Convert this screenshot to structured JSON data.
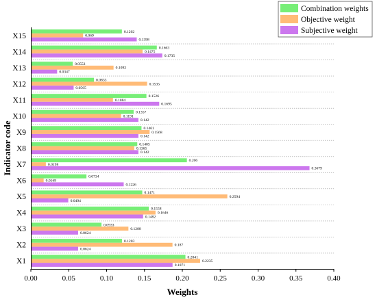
{
  "chart_data": {
    "type": "bar",
    "orientation": "horizontal",
    "categories": [
      "X1",
      "X2",
      "X3",
      "X4",
      "X5",
      "X6",
      "X7",
      "X8",
      "X9",
      "X10",
      "X11",
      "X12",
      "X13",
      "X14",
      "X15"
    ],
    "series": [
      {
        "name": "Combination weights",
        "color": "#77ee77",
        "values": [
          0.2041,
          0.1203,
          0.0933,
          0.1558,
          0.1471,
          0.0734,
          0.206,
          0.1405,
          0.1461,
          0.1357,
          0.1526,
          0.0833,
          0.0553,
          0.1663,
          0.1202
        ]
      },
      {
        "name": "Objective weight",
        "color": "#ffbb77",
        "values": [
          0.2235,
          0.187,
          0.1288,
          0.1646,
          0.2594,
          0.0169,
          0.0198,
          0.1365,
          0.1568,
          0.1191,
          0.1084,
          0.1535,
          0.1092,
          0.1475,
          0.069
        ]
      },
      {
        "name": "Subjective weight",
        "color": "#cc77ee",
        "values": [
          0.1871,
          0.0624,
          0.0624,
          0.1482,
          0.0494,
          0.1226,
          0.3679,
          0.142,
          0.142,
          0.142,
          0.1695,
          0.0565,
          0.0347,
          0.1735,
          0.1398
        ]
      }
    ],
    "data_labels": {
      "Combination weights": [
        "0.2041",
        "0.1203",
        "0.0933",
        "0.1558",
        "0.1471",
        "0.0734",
        "0.206",
        "0.1405",
        "0.1461",
        "0.1357",
        "0.1526",
        "0.0833",
        "0.0553",
        "0.1663",
        "0.1202"
      ],
      "Objective weight": [
        "0.2235",
        "0.187",
        "0.1288",
        "0.1646",
        "0.2594",
        "0.0169",
        "0.0198",
        "0.1365",
        "0.1568",
        "0.1191",
        "0.1084",
        "0.1535",
        "0.1092",
        "0.1475",
        "0.069"
      ],
      "Subjective weight": [
        "0.1871",
        "0.0624",
        "0.0624",
        "0.1482",
        "0.0494",
        "0.1226",
        "0.3679",
        "0.142",
        "0.142",
        "0.142",
        "0.1695",
        "0.0565",
        "0.0347",
        "0.1735",
        "0.1398"
      ]
    },
    "xlabel": "Weights",
    "ylabel": "Indicator code",
    "xlim": [
      0,
      0.4
    ],
    "xticks": [
      "0.00",
      "0.05",
      "0.10",
      "0.15",
      "0.20",
      "0.25",
      "0.30",
      "0.35",
      "0.40"
    ],
    "legend_position": "top-right",
    "grid": "dotted horizontal separators"
  }
}
